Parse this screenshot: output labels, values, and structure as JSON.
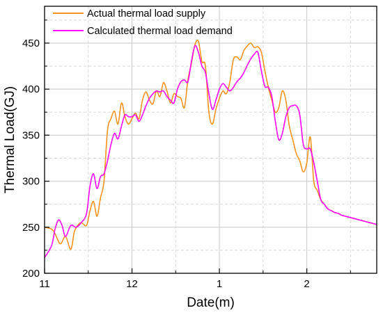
{
  "chart_data": {
    "type": "line",
    "xlabel": "Date(m)",
    "ylabel": "Thermal Load(GJ)",
    "x_range": [
      0,
      3.8
    ],
    "ylim": [
      200,
      490
    ],
    "grid": true,
    "legend_placement": "top-left",
    "x_ticks": [
      {
        "value": 0,
        "label": "11"
      },
      {
        "value": 1,
        "label": "12"
      },
      {
        "value": 2,
        "label": "1"
      },
      {
        "value": 3,
        "label": "2"
      }
    ],
    "x_minor_ticks": [
      0.5,
      1.5,
      2.5,
      3.5
    ],
    "y_ticks": [
      200,
      250,
      300,
      350,
      400,
      450
    ],
    "series": [
      {
        "name": "Actual thermal load supply",
        "color": "#f7931e",
        "x": [
          0.0,
          0.08,
          0.12,
          0.18,
          0.24,
          0.3,
          0.34,
          0.38,
          0.42,
          0.48,
          0.52,
          0.56,
          0.6,
          0.64,
          0.68,
          0.72,
          0.76,
          0.8,
          0.84,
          0.88,
          0.92,
          0.96,
          1.0,
          1.04,
          1.08,
          1.12,
          1.16,
          1.2,
          1.24,
          1.28,
          1.32,
          1.36,
          1.4,
          1.44,
          1.48,
          1.52,
          1.56,
          1.6,
          1.64,
          1.68,
          1.72,
          1.76,
          1.8,
          1.84,
          1.88,
          1.92,
          1.96,
          2.0,
          2.04,
          2.08,
          2.12,
          2.16,
          2.2,
          2.24,
          2.28,
          2.32,
          2.36,
          2.4,
          2.44,
          2.48,
          2.52,
          2.56,
          2.6,
          2.64,
          2.68,
          2.72,
          2.76,
          2.8,
          2.84,
          2.88,
          2.92,
          2.96,
          3.0,
          3.04,
          3.08,
          3.12,
          3.16,
          3.2,
          3.24,
          3.28,
          3.32,
          3.36,
          3.4,
          3.44,
          3.48,
          3.52,
          3.56,
          3.6,
          3.64,
          3.68,
          3.72,
          3.76,
          3.8
        ],
        "values": [
          250,
          248,
          243,
          232,
          240,
          226,
          245,
          252,
          255,
          252,
          268,
          278,
          262,
          282,
          300,
          355,
          368,
          376,
          362,
          385,
          370,
          362,
          368,
          374,
          368,
          388,
          397,
          388,
          384,
          398,
          392,
          407,
          398,
          385,
          395,
          392,
          390,
          380,
          410,
          428,
          448,
          452,
          430,
          425,
          375,
          362,
          378,
          390,
          398,
          395,
          408,
          432,
          435,
          432,
          442,
          447,
          450,
          445,
          446,
          440,
          420,
          402,
          388,
          375,
          380,
          398,
          388,
          360,
          345,
          330,
          322,
          310,
          320,
          348,
          300,
          290,
          280,
          275,
          270,
          268,
          266,
          265,
          263,
          262,
          261,
          260,
          259,
          258,
          257,
          256,
          255,
          254,
          253
        ]
      },
      {
        "name": "Calculated thermal load demand",
        "color": "#ff00ff",
        "x": [
          0.0,
          0.08,
          0.12,
          0.16,
          0.2,
          0.24,
          0.3,
          0.36,
          0.42,
          0.48,
          0.52,
          0.56,
          0.6,
          0.64,
          0.68,
          0.72,
          0.76,
          0.8,
          0.84,
          0.88,
          0.92,
          0.96,
          1.0,
          1.04,
          1.08,
          1.12,
          1.16,
          1.2,
          1.24,
          1.28,
          1.32,
          1.36,
          1.4,
          1.44,
          1.48,
          1.52,
          1.56,
          1.6,
          1.64,
          1.68,
          1.72,
          1.76,
          1.8,
          1.84,
          1.88,
          1.92,
          1.96,
          2.0,
          2.04,
          2.08,
          2.12,
          2.16,
          2.2,
          2.24,
          2.28,
          2.32,
          2.36,
          2.4,
          2.44,
          2.48,
          2.52,
          2.56,
          2.6,
          2.64,
          2.68,
          2.72,
          2.76,
          2.8,
          2.84,
          2.88,
          2.92,
          2.96,
          3.0,
          3.04,
          3.08,
          3.12,
          3.16,
          3.2,
          3.24,
          3.28,
          3.32,
          3.36,
          3.4,
          3.44,
          3.48,
          3.52,
          3.56,
          3.6,
          3.64,
          3.68,
          3.72,
          3.76,
          3.8
        ],
        "values": [
          217,
          230,
          248,
          258,
          252,
          240,
          252,
          250,
          255,
          265,
          295,
          308,
          292,
          305,
          308,
          322,
          340,
          352,
          346,
          360,
          372,
          370,
          370,
          372,
          365,
          372,
          382,
          390,
          395,
          398,
          397,
          398,
          392,
          388,
          385,
          400,
          408,
          410,
          408,
          430,
          447,
          440,
          425,
          418,
          395,
          378,
          388,
          400,
          406,
          402,
          398,
          402,
          408,
          412,
          418,
          426,
          433,
          438,
          440,
          420,
          403,
          402,
          392,
          365,
          345,
          352,
          370,
          380,
          382,
          382,
          372,
          340,
          335,
          335,
          320,
          300,
          280,
          275,
          270,
          268,
          266,
          265,
          263,
          262,
          261,
          260,
          259,
          258,
          257,
          256,
          255,
          254,
          253
        ]
      }
    ]
  }
}
